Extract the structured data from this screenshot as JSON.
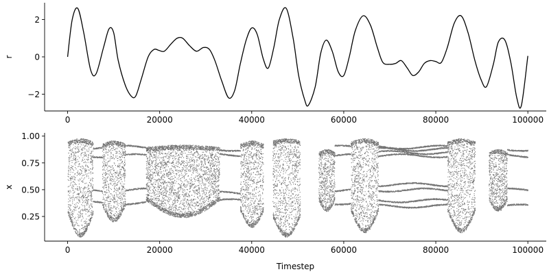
{
  "chart_data": [
    {
      "type": "line",
      "ylabel": "r",
      "xlabel": "",
      "xlim": [
        -5000,
        104000
      ],
      "ylim": [
        -2.9,
        2.9
      ],
      "x_ticks": [
        0,
        20000,
        40000,
        60000,
        80000,
        100000
      ],
      "x_tick_labels": [
        "0",
        "20000",
        "40000",
        "60000",
        "80000",
        "100000"
      ],
      "y_ticks": [
        -2,
        0,
        2
      ],
      "y_tick_labels": [
        "−2",
        "0",
        "2"
      ],
      "grid": false,
      "line_color": "#000000",
      "series": [
        {
          "x": [
            0,
            1000,
            2200,
            3500,
            5000,
            6200,
            7800,
            9000,
            10000,
            11000,
            12500,
            13800,
            14800,
            16000,
            17500,
            18800,
            19800,
            21000,
            22500,
            23800,
            25000,
            26500,
            28000,
            29500,
            30800,
            32000,
            33500,
            35000,
            36300,
            37500,
            38800,
            40000,
            41200,
            42500,
            43600,
            44800,
            46000,
            47500,
            49000,
            50200,
            51500,
            52300,
            53800,
            55000,
            56200,
            57500,
            58800,
            60000,
            61200,
            62500,
            64200,
            65800,
            67300,
            68500,
            70000,
            71300,
            72500,
            73800,
            75000,
            76300,
            77500,
            78800,
            80000,
            81200,
            82500,
            84000,
            85500,
            87000,
            88500,
            89800,
            91000,
            92500,
            93600,
            95000,
            96300,
            97600,
            98600,
            100000
          ],
          "y": [
            0,
            2.0,
            2.6,
            1.3,
            -0.7,
            -0.9,
            0.5,
            1.5,
            1.3,
            -0.2,
            -1.5,
            -2.1,
            -2.1,
            -1.2,
            0.0,
            0.4,
            0.35,
            0.3,
            0.7,
            1.0,
            1.0,
            0.6,
            0.3,
            0.5,
            0.4,
            -0.2,
            -1.3,
            -2.2,
            -1.8,
            -0.4,
            0.9,
            1.55,
            1.2,
            -0.1,
            -0.6,
            0.5,
            2.0,
            2.6,
            1.0,
            -1.0,
            -2.3,
            -2.6,
            -1.6,
            0.2,
            0.9,
            0.3,
            -0.8,
            -1.0,
            0.0,
            1.4,
            2.2,
            1.7,
            0.5,
            -0.3,
            -0.4,
            -0.35,
            -0.2,
            -0.6,
            -1.0,
            -0.8,
            -0.35,
            -0.2,
            -0.25,
            -0.3,
            0.5,
            1.8,
            2.2,
            1.3,
            -0.2,
            -1.2,
            -1.6,
            -0.4,
            0.8,
            0.9,
            -0.3,
            -2.2,
            -2.6,
            0.05
          ]
        }
      ]
    },
    {
      "type": "scatter",
      "ylabel": "x",
      "xlabel": "Timestep",
      "xlim": [
        -5000,
        104000
      ],
      "ylim": [
        0.02,
        1.03
      ],
      "x_ticks": [
        0,
        20000,
        40000,
        60000,
        80000,
        100000
      ],
      "x_tick_labels": [
        "0",
        "20000",
        "40000",
        "60000",
        "80000",
        "100000"
      ],
      "y_ticks": [
        0.25,
        0.5,
        0.75,
        1.0
      ],
      "y_tick_labels": [
        "0.25",
        "0.50",
        "0.75",
        "1.00"
      ],
      "grid": false,
      "point_color": "#000000",
      "description_of_points": "dense bifurcation-style scatter of x vs timestep",
      "chaotic_bands": [
        {
          "x_start": 0,
          "x_end": 5500,
          "y_low": [
            0.28,
            0.06
          ],
          "y_high": [
            0.95,
            0.98
          ]
        },
        {
          "x_start": 7500,
          "x_end": 12500,
          "y_low": [
            0.35,
            0.2
          ],
          "y_high": [
            0.93,
            0.96
          ]
        },
        {
          "x_start": 17000,
          "x_end": 33000,
          "y_low": [
            0.4,
            0.24
          ],
          "y_high": [
            0.9,
            0.92
          ]
        },
        {
          "x_start": 37500,
          "x_end": 42500,
          "y_low": [
            0.3,
            0.15
          ],
          "y_high": [
            0.93,
            0.96
          ]
        },
        {
          "x_start": 44500,
          "x_end": 50500,
          "y_low": [
            0.25,
            0.06
          ],
          "y_high": [
            0.96,
            0.98
          ]
        },
        {
          "x_start": 54500,
          "x_end": 58000,
          "y_low": [
            0.4,
            0.3
          ],
          "y_high": [
            0.85,
            0.88
          ]
        },
        {
          "x_start": 61500,
          "x_end": 67500,
          "y_low": [
            0.3,
            0.1
          ],
          "y_high": [
            0.95,
            0.98
          ]
        },
        {
          "x_start": 82500,
          "x_end": 88500,
          "y_low": [
            0.3,
            0.1
          ],
          "y_high": [
            0.95,
            0.98
          ]
        },
        {
          "x_start": 91500,
          "x_end": 95500,
          "y_low": [
            0.4,
            0.3
          ],
          "y_high": [
            0.85,
            0.88
          ]
        }
      ],
      "periodic_branches": [
        {
          "x_start": 5500,
          "x_end": 7500,
          "values": [
            0.38,
            0.5,
            0.82,
            0.9
          ]
        },
        {
          "x_start": 12500,
          "x_end": 17000,
          "values": [
            0.38,
            0.5,
            0.82,
            0.9
          ]
        },
        {
          "x_start": 33000,
          "x_end": 37500,
          "values": [
            0.4,
            0.47,
            0.83,
            0.88
          ]
        },
        {
          "x_start": 58000,
          "x_end": 61500,
          "values": [
            0.38,
            0.5,
            0.82,
            0.9
          ]
        },
        {
          "x_start": 67500,
          "x_end": 82500,
          "values": [
            0.35,
            0.4,
            0.5,
            0.55,
            0.82,
            0.85,
            0.88,
            0.9
          ]
        },
        {
          "x_start": 95500,
          "x_end": 100000,
          "values": [
            0.35,
            0.5,
            0.82,
            0.88
          ]
        }
      ]
    }
  ]
}
